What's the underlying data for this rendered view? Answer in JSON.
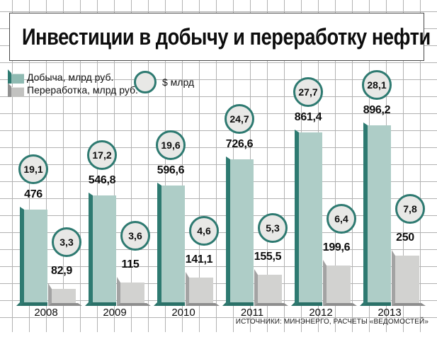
{
  "title": "Инвестиции в добычу и переработку нефти",
  "legend": {
    "extraction": "Добыча, млрд руб.",
    "processing": "Переработка, млрд руб.",
    "usd": "$ млрд"
  },
  "source": "ИСТОЧНИКИ: МИНЭНЕРГО, РАСЧЕТЫ «ВЕДОМОСТЕЙ»",
  "colors": {
    "extraction_fill": "#aecdc7",
    "extraction_dark": "#2e7a71",
    "processing_fill": "#d2d2d0",
    "processing_dark": "#8e8e8e",
    "circle_fill": "#e8e8e6",
    "circle_border": "#2e7a71",
    "grid_line": "#b2b2b2"
  },
  "chart_data": {
    "type": "bar",
    "title": "Инвестиции в добычу и переработку нефти",
    "categories": [
      "2008",
      "2009",
      "2010",
      "2011",
      "2012",
      "2013"
    ],
    "series": [
      {
        "name": "Добыча, млрд руб.",
        "values": [
          476,
          546.8,
          596.6,
          726.6,
          861.4,
          896.2
        ]
      },
      {
        "name": "Переработка, млрд руб.",
        "values": [
          82.9,
          115,
          141.1,
          155.5,
          199.6,
          250
        ]
      },
      {
        "name": "Добыча, $ млрд",
        "values": [
          19.1,
          17.2,
          19.6,
          24.7,
          27.7,
          28.1
        ]
      },
      {
        "name": "Переработка, $ млрд",
        "values": [
          3.3,
          3.6,
          4.6,
          5.3,
          6.4,
          7.8
        ]
      }
    ],
    "xlabel": "",
    "ylabel": "",
    "grid": true,
    "legend_position": "top-left",
    "decimal_separator": ",",
    "source": "ИСТОЧНИКИ: МИНЭНЕРГО, РАСЧЕТЫ «ВЕДОМОСТЕЙ»"
  }
}
